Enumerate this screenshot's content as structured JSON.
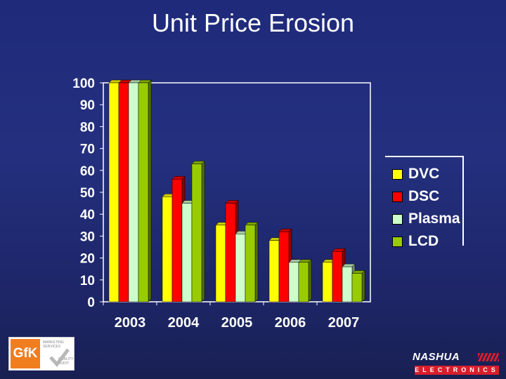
{
  "title": "Unit Price Erosion",
  "chart_data": {
    "type": "bar",
    "title": "Unit Price Erosion",
    "xlabel": "",
    "ylabel": "",
    "ylim": [
      0,
      100
    ],
    "yticks": [
      0,
      10,
      20,
      30,
      40,
      50,
      60,
      70,
      80,
      90,
      100
    ],
    "categories": [
      "2003",
      "2004",
      "2005",
      "2006",
      "2007"
    ],
    "series": [
      {
        "name": "DVC",
        "values": [
          100,
          48,
          35,
          28,
          18
        ],
        "color": "#ffff00"
      },
      {
        "name": "DSC",
        "values": [
          100,
          56,
          45,
          32,
          23
        ],
        "color": "#ff0000"
      },
      {
        "name": "Plasma",
        "values": [
          100,
          45,
          31,
          18,
          16
        ],
        "color": "#ccffcc"
      },
      {
        "name": "LCD",
        "values": [
          100,
          63,
          35,
          18,
          13
        ],
        "color": "#99cc00"
      }
    ],
    "legend": "right",
    "grid": false
  },
  "logos": {
    "left": {
      "name": "GfK",
      "icon": "gfk-logo",
      "small_lines": [
        "MARKETING",
        "SERVICES",
        "QUALITY",
        "AUDIT"
      ]
    },
    "right": {
      "name": "NASHUA",
      "sub": "ELECTRONICS",
      "icon": "nashua-logo"
    }
  }
}
